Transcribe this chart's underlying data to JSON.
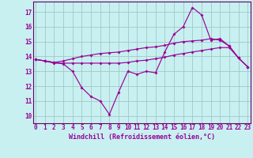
{
  "title": "",
  "xlabel": "Windchill (Refroidissement éolien,°C)",
  "ylabel": "",
  "background_color": "#c8f0f0",
  "grid_color": "#a0c8c8",
  "line_color": "#990099",
  "spine_color": "#660066",
  "x_ticks": [
    0,
    1,
    2,
    3,
    4,
    5,
    6,
    7,
    8,
    9,
    10,
    11,
    12,
    13,
    14,
    15,
    16,
    17,
    18,
    19,
    20,
    21,
    22,
    23
  ],
  "y_ticks": [
    10,
    11,
    12,
    13,
    14,
    15,
    16,
    17
  ],
  "xlim": [
    -0.3,
    23.3
  ],
  "ylim": [
    9.5,
    17.7
  ],
  "series1_x": [
    0,
    1,
    2,
    3,
    4,
    5,
    6,
    7,
    8,
    9,
    10,
    11,
    12,
    13,
    14,
    15,
    16,
    17,
    18,
    19,
    20,
    21,
    22,
    23
  ],
  "series1_y": [
    13.8,
    13.7,
    13.6,
    13.5,
    13.0,
    11.9,
    11.3,
    11.0,
    10.1,
    11.6,
    13.0,
    12.8,
    13.0,
    12.9,
    14.3,
    15.5,
    16.0,
    17.3,
    16.8,
    15.1,
    15.2,
    14.7,
    13.9,
    13.3
  ],
  "series2_x": [
    0,
    1,
    2,
    3,
    4,
    5,
    6,
    7,
    8,
    9,
    10,
    11,
    12,
    13,
    14,
    15,
    16,
    17,
    18,
    19,
    20,
    21,
    22,
    23
  ],
  "series2_y": [
    13.8,
    13.7,
    13.6,
    13.7,
    13.85,
    14.0,
    14.1,
    14.2,
    14.25,
    14.3,
    14.4,
    14.5,
    14.6,
    14.65,
    14.75,
    14.9,
    15.0,
    15.05,
    15.1,
    15.2,
    15.1,
    14.7,
    13.9,
    13.3
  ],
  "series3_x": [
    0,
    1,
    2,
    3,
    4,
    5,
    6,
    7,
    8,
    9,
    10,
    11,
    12,
    13,
    14,
    15,
    16,
    17,
    18,
    19,
    20,
    21,
    22,
    23
  ],
  "series3_y": [
    13.8,
    13.7,
    13.55,
    13.55,
    13.55,
    13.55,
    13.55,
    13.55,
    13.55,
    13.55,
    13.6,
    13.7,
    13.75,
    13.85,
    13.95,
    14.1,
    14.2,
    14.3,
    14.4,
    14.5,
    14.6,
    14.6,
    13.9,
    13.3
  ],
  "tick_fontsize": 5.5,
  "xlabel_fontsize": 6.0
}
